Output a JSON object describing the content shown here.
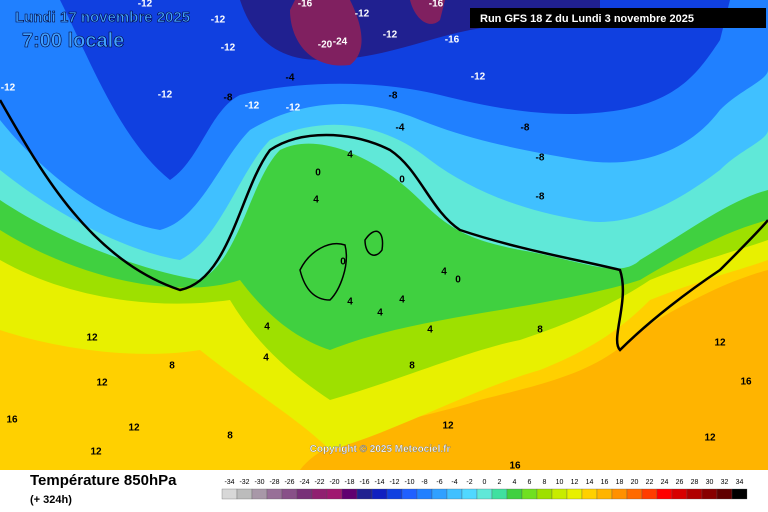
{
  "header": {
    "date": "Lundi 17 novembre 2025",
    "time": "7:00 locale",
    "run": "Run GFS 18 Z du Lundi 3 novembre 2025"
  },
  "footer": {
    "title": "Température 850hPa",
    "lead": "(+ 324h)",
    "copyright": "Copyright © 2025 Meteociel.fr"
  },
  "labels": [
    -12,
    -12,
    -12,
    -16,
    -12,
    -16,
    -20,
    -24,
    -12,
    -16,
    -12,
    -4,
    -8,
    -12,
    -12,
    -12,
    -8,
    -4,
    -8,
    -8,
    -8,
    -12,
    0,
    0,
    4,
    4,
    0,
    4,
    4,
    0,
    4,
    4,
    4,
    4,
    4,
    8,
    8,
    12,
    12,
    12,
    16,
    12,
    16,
    8,
    12,
    16,
    12,
    12,
    8
  ],
  "legend": {
    "ticks": [
      -34,
      -32,
      -30,
      -28,
      -26,
      -24,
      -22,
      -20,
      -18,
      -16,
      -14,
      -12,
      -10,
      -8,
      -6,
      -4,
      -2,
      0,
      2,
      4,
      6,
      8,
      10,
      12,
      14,
      16,
      18,
      20,
      22,
      24,
      26,
      28,
      30,
      32,
      34
    ],
    "colors": [
      "#d8d8d8",
      "#bcbcbc",
      "#a898a8",
      "#987098",
      "#885088",
      "#783078",
      "#902070",
      "#a01870",
      "#600070",
      "#202090",
      "#1020c0",
      "#1040e0",
      "#2060ff",
      "#2080ff",
      "#30a0ff",
      "#40c0ff",
      "#50d8ff",
      "#60e8d8",
      "#40e0a0",
      "#40d040",
      "#70e020",
      "#9ee000",
      "#c8ec00",
      "#e8f000",
      "#ffd000",
      "#ffb400",
      "#ff9000",
      "#ff6a00",
      "#ff3c00",
      "#ff0000",
      "#d80000",
      "#b00000",
      "#880000",
      "#600000",
      "#000000"
    ]
  }
}
